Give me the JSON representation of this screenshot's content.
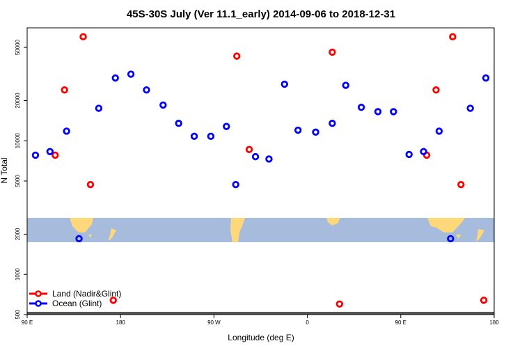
{
  "chart_data": {
    "type": "scatter",
    "title": "45S-30S July (Ver 11.1_early)   2014-09-06 to 2018-12-31",
    "xlabel": "Longitude (deg E)",
    "ylabel": "N Total",
    "y_scale": "log",
    "xlim": [
      90,
      540
    ],
    "ylim": [
      500,
      70000
    ],
    "x_ticks": [
      {
        "value": 90,
        "label": "90 E"
      },
      {
        "value": 180,
        "label": "180"
      },
      {
        "value": 270,
        "label": "90 W"
      },
      {
        "value": 360,
        "label": "0"
      },
      {
        "value": 450,
        "label": "90 E"
      },
      {
        "value": 540,
        "label": "180"
      }
    ],
    "y_ticks": [
      {
        "value": 500,
        "label": "500"
      },
      {
        "value": 1000,
        "label": "1000"
      },
      {
        "value": 2000,
        "label": "2000"
      },
      {
        "value": 5000,
        "label": "5000"
      },
      {
        "value": 10000,
        "label": "10000"
      },
      {
        "value": 20000,
        "label": "20000"
      },
      {
        "value": 50000,
        "label": "50000"
      }
    ],
    "background_map": "world map strip for latitudes 45S-30S (land yellow, ocean light blue)",
    "legend": {
      "position": "bottom-left"
    },
    "series": [
      {
        "name": "Land (Nadir&Glint)",
        "color": "#ff0000",
        "points": [
          {
            "x": 117,
            "y": 7800
          },
          {
            "x": 126,
            "y": 24000
          },
          {
            "x": 144,
            "y": 60000
          },
          {
            "x": 151,
            "y": 4700
          },
          {
            "x": 173,
            "y": 640
          },
          {
            "x": 292,
            "y": 43000
          },
          {
            "x": 304,
            "y": 8600
          },
          {
            "x": 384,
            "y": 46000
          },
          {
            "x": 391,
            "y": 600
          },
          {
            "x": 475,
            "y": 7800
          },
          {
            "x": 484,
            "y": 24000
          },
          {
            "x": 500,
            "y": 60000
          },
          {
            "x": 508,
            "y": 4700
          },
          {
            "x": 530,
            "y": 640
          }
        ]
      },
      {
        "name": "Ocean (Glint)",
        "color": "#0000ff",
        "points": [
          {
            "x": 98,
            "y": 7800
          },
          {
            "x": 112,
            "y": 8300
          },
          {
            "x": 128,
            "y": 11800
          },
          {
            "x": 140,
            "y": 1850
          },
          {
            "x": 159,
            "y": 17500
          },
          {
            "x": 175,
            "y": 29500
          },
          {
            "x": 190,
            "y": 31500
          },
          {
            "x": 205,
            "y": 24000
          },
          {
            "x": 221,
            "y": 18500
          },
          {
            "x": 236,
            "y": 13500
          },
          {
            "x": 251,
            "y": 10800
          },
          {
            "x": 267,
            "y": 10800
          },
          {
            "x": 282,
            "y": 12800
          },
          {
            "x": 291,
            "y": 4700
          },
          {
            "x": 310,
            "y": 7600
          },
          {
            "x": 323,
            "y": 7300
          },
          {
            "x": 338,
            "y": 26500
          },
          {
            "x": 351,
            "y": 12000
          },
          {
            "x": 368,
            "y": 11600
          },
          {
            "x": 384,
            "y": 13500
          },
          {
            "x": 397,
            "y": 26000
          },
          {
            "x": 412,
            "y": 17800
          },
          {
            "x": 428,
            "y": 16500
          },
          {
            "x": 443,
            "y": 16500
          },
          {
            "x": 458,
            "y": 7900
          },
          {
            "x": 472,
            "y": 8300
          },
          {
            "x": 487,
            "y": 11800
          },
          {
            "x": 498,
            "y": 1850
          },
          {
            "x": 517,
            "y": 17500
          },
          {
            "x": 532,
            "y": 29500
          }
        ]
      }
    ]
  }
}
